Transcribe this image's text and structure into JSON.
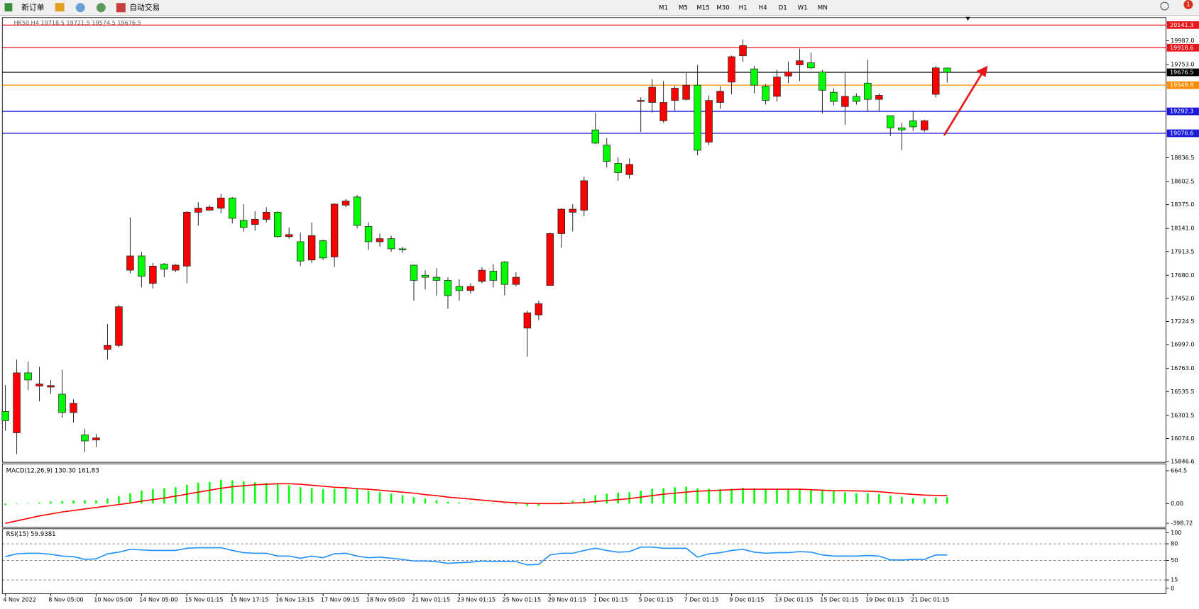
{
  "toolbar": {
    "new_order": "新订单",
    "auto_trading": "自动交易",
    "timeframes": [
      "M1",
      "M5",
      "M15",
      "M30",
      "H1",
      "H4",
      "D1",
      "W1",
      "MN"
    ],
    "badge": "1"
  },
  "chart_data": [
    {
      "type": "candlestick",
      "title": "HK50,H4 19718.5 19721.5 19574.5 19676.5",
      "up_color": "#ff0000",
      "down_color": "#00ff00",
      "x": [
        "4 Nov 2022",
        null,
        null,
        null,
        "8 Nov 05:00",
        null,
        null,
        null,
        "10 Nov 05:00",
        null,
        null,
        null,
        "14 Nov 05:00",
        null,
        null,
        null,
        "15 Nov 01:15",
        null,
        null,
        null,
        "15 Nov 17:15",
        null,
        null,
        null,
        "16 Nov 13:15",
        null,
        null,
        null,
        "17 Nov 09:15",
        null,
        null,
        null,
        "18 Nov 05:00",
        null,
        null,
        null,
        "21 Nov 01:15",
        null,
        null,
        null,
        "23 Nov 01:15",
        null,
        null,
        null,
        "25 Nov 01:15",
        null,
        null,
        null,
        "29 Nov 01:15",
        null,
        null,
        null,
        "1 Dec 01:15",
        null,
        null,
        null,
        "5 Dec 01:15",
        null,
        null,
        null,
        "7 Dec 01:15",
        null,
        null,
        null,
        "9 Dec 01:15",
        null,
        null,
        null,
        "13 Dec 01:15",
        null,
        null,
        null,
        "15 Dec 01:15",
        null,
        null,
        null,
        "19 Dec 01:15",
        null,
        null,
        null,
        "21 Dec 01:15",
        null,
        null,
        null
      ],
      "open": [
        16340,
        16130,
        16720,
        16590,
        16580,
        16510,
        16330,
        16110,
        16060,
        16950,
        16990,
        17730,
        17870,
        17600,
        17790,
        17730,
        17770,
        18300,
        18320,
        18340,
        18440,
        18220,
        18180,
        18230,
        18300,
        18060,
        18010,
        17830,
        18020,
        17860,
        18370,
        18450,
        18160,
        18010,
        18040,
        17940,
        17780,
        17680,
        17660,
        17630,
        17570,
        17530,
        17620,
        17720,
        17810,
        17590,
        17160,
        17290,
        17580,
        18090,
        18300,
        18320,
        19110,
        18960,
        18780,
        18670,
        19390,
        19380,
        19200,
        19400,
        19410,
        19550,
        18990,
        19380,
        19580,
        19840,
        19710,
        19540,
        19440,
        19640,
        19750,
        19770,
        19680,
        19480,
        19340,
        19440,
        19570,
        19410,
        19250,
        19130,
        19200,
        19110,
        19460,
        19718.5
      ],
      "high": [
        16600,
        16850,
        16830,
        16780,
        16650,
        16750,
        16460,
        16170,
        16120,
        17200,
        17390,
        18250,
        17910,
        17800,
        17800,
        17790,
        18310,
        18400,
        18370,
        18480,
        18450,
        18380,
        18310,
        18350,
        18310,
        18150,
        18100,
        18200,
        18030,
        18390,
        18430,
        18470,
        18200,
        18090,
        18070,
        17960,
        17780,
        17730,
        17750,
        17660,
        17640,
        17600,
        17760,
        17790,
        17820,
        17710,
        17330,
        17430,
        18100,
        18340,
        18380,
        18650,
        19280,
        19030,
        18840,
        18830,
        19430,
        19610,
        19590,
        19540,
        19670,
        19750,
        19450,
        19540,
        19840,
        20000,
        19740,
        19560,
        19700,
        19780,
        19910,
        19870,
        19700,
        19520,
        19670,
        19470,
        19800,
        19470,
        19250,
        19180,
        19290,
        19210,
        19740,
        19721.5
      ],
      "low": [
        16150,
        15920,
        16550,
        16440,
        16510,
        16280,
        16230,
        15940,
        15990,
        16850,
        16970,
        17700,
        17560,
        17550,
        17660,
        17710,
        17600,
        18170,
        18320,
        18290,
        18190,
        18110,
        18120,
        18200,
        18050,
        18040,
        17770,
        17800,
        17830,
        17760,
        18350,
        18140,
        17930,
        17960,
        17910,
        17900,
        17430,
        17540,
        17480,
        17350,
        17430,
        17500,
        17600,
        17560,
        17480,
        17570,
        16880,
        17240,
        17580,
        17950,
        18110,
        18260,
        18970,
        18740,
        18610,
        18630,
        19090,
        19280,
        19180,
        19300,
        19400,
        18860,
        18960,
        19320,
        19460,
        19780,
        19470,
        19360,
        19390,
        19570,
        19590,
        19710,
        19270,
        19350,
        19160,
        19360,
        19290,
        19290,
        19050,
        18910,
        19100,
        19090,
        19430,
        19574.5
      ],
      "close": [
        16250,
        16720,
        16650,
        16610,
        16595,
        16330,
        16420,
        16050,
        16080,
        16990,
        17370,
        17870,
        17670,
        17770,
        17740,
        17780,
        18300,
        18340,
        18350,
        18440,
        18240,
        18150,
        18230,
        18300,
        18060,
        18080,
        17820,
        18070,
        17850,
        18380,
        18410,
        18170,
        18010,
        18040,
        17940,
        17930,
        17630,
        17660,
        17630,
        17480,
        17530,
        17570,
        17730,
        17630,
        17590,
        17660,
        17310,
        17400,
        18090,
        18330,
        18330,
        18610,
        18980,
        18800,
        18690,
        18770,
        19400,
        19530,
        19380,
        19520,
        19550,
        18910,
        19400,
        19490,
        19830,
        19940,
        19550,
        19400,
        19630,
        19680,
        19790,
        19720,
        19500,
        19390,
        19440,
        19390,
        19410,
        19450,
        19130,
        19110,
        19140,
        19200,
        19720,
        19676.5
      ],
      "ylim": [
        15840,
        20215
      ],
      "yticks": [
        {
          "value": 19987,
          "label": "19987.0"
        },
        {
          "value": 19753,
          "label": "19753.0"
        },
        18836.5,
        18602.5,
        {
          "value": 18375,
          "label": "18375.0"
        },
        {
          "value": 18141,
          "label": "18141.0"
        },
        17913.5,
        {
          "value": 17680,
          "label": "17680.0"
        },
        {
          "value": 17452,
          "label": "17452.0"
        },
        17224.5,
        {
          "value": 16997,
          "label": "16997.0"
        },
        {
          "value": 16763,
          "label": "16763.0"
        },
        16535.5,
        16301.5,
        {
          "value": 16074,
          "label": "16074.0"
        },
        15846.6
      ],
      "hlines": [
        {
          "value": 20141.3,
          "color": "#e8151b"
        },
        {
          "value": 19918.6,
          "color": "#e8151b"
        },
        {
          "value": 19676.5,
          "color": "#000000"
        },
        {
          "value": 19549.8,
          "color": "#ff8c00"
        },
        {
          "value": 19292.3,
          "color": "#1a1adc"
        },
        {
          "value": 19076.6,
          "color": "#1a1adc"
        }
      ]
    },
    {
      "type": "combo",
      "title": "MACD(12,26,9) 130.30 161.83",
      "series": [
        {
          "style": "bar",
          "color": "#00ff00",
          "values": [
            -30,
            -10,
            10,
            20,
            40,
            50,
            60,
            70,
            60,
            100,
            150,
            210,
            260,
            290,
            310,
            330,
            380,
            420,
            440,
            480,
            470,
            450,
            430,
            420,
            400,
            370,
            330,
            310,
            290,
            300,
            310,
            290,
            260,
            230,
            200,
            170,
            130,
            100,
            70,
            40,
            20,
            10,
            10,
            0,
            -10,
            -20,
            -50,
            -50,
            -10,
            30,
            60,
            100,
            170,
            200,
            220,
            230,
            260,
            300,
            310,
            330,
            340,
            310,
            300,
            290,
            300,
            320,
            310,
            290,
            290,
            290,
            300,
            290,
            270,
            250,
            230,
            210,
            210,
            190,
            160,
            130,
            110,
            100,
            120,
            130.3
          ]
        },
        {
          "style": "line",
          "color": "#ff0000",
          "values": [
            -400,
            -350,
            -300,
            -250,
            -210,
            -170,
            -140,
            -110,
            -80,
            -50,
            -20,
            10,
            50,
            80,
            110,
            150,
            190,
            230,
            270,
            310,
            340,
            360,
            380,
            390,
            400,
            400,
            390,
            370,
            350,
            330,
            320,
            300,
            290,
            270,
            250,
            230,
            210,
            180,
            160,
            130,
            110,
            90,
            70,
            50,
            30,
            15,
            5,
            0,
            0,
            0,
            10,
            20,
            40,
            60,
            80,
            100,
            130,
            160,
            190,
            210,
            230,
            250,
            260,
            270,
            280,
            290,
            290,
            290,
            290,
            290,
            290,
            280,
            270,
            260,
            260,
            255,
            250,
            240,
            220,
            200,
            185,
            172,
            165,
            161.83
          ]
        }
      ],
      "ylim": [
        -479,
        803.6
      ],
      "yticks": [
        664.5,
        {
          "value": 0,
          "label": "0.00"
        },
        -398.72
      ]
    },
    {
      "type": "line",
      "title": "RSI(15) 59.9381",
      "series": [
        {
          "color": "#1e90ff",
          "values": [
            57,
            62,
            63,
            63,
            61,
            58,
            57,
            52,
            53,
            62,
            65,
            70,
            69,
            68,
            68,
            68,
            72,
            73,
            73,
            73,
            68,
            64,
            63,
            63,
            58,
            58,
            54,
            58,
            55,
            62,
            63,
            58,
            55,
            56,
            54,
            52,
            49,
            49,
            48,
            45,
            46,
            47,
            49,
            48,
            48,
            48,
            42,
            43,
            60,
            63,
            63,
            68,
            72,
            68,
            65,
            66,
            74,
            74,
            72,
            72,
            72,
            56,
            62,
            64,
            68,
            70,
            65,
            63,
            64,
            64,
            66,
            65,
            60,
            58,
            58,
            58,
            59,
            58,
            51,
            51,
            52,
            52,
            60,
            59.9381
          ]
        }
      ],
      "ylim": [
        -9.7,
        107
      ],
      "yticks": [
        100,
        80,
        50,
        15,
        0
      ],
      "levels": [
        80,
        50,
        15
      ]
    }
  ]
}
